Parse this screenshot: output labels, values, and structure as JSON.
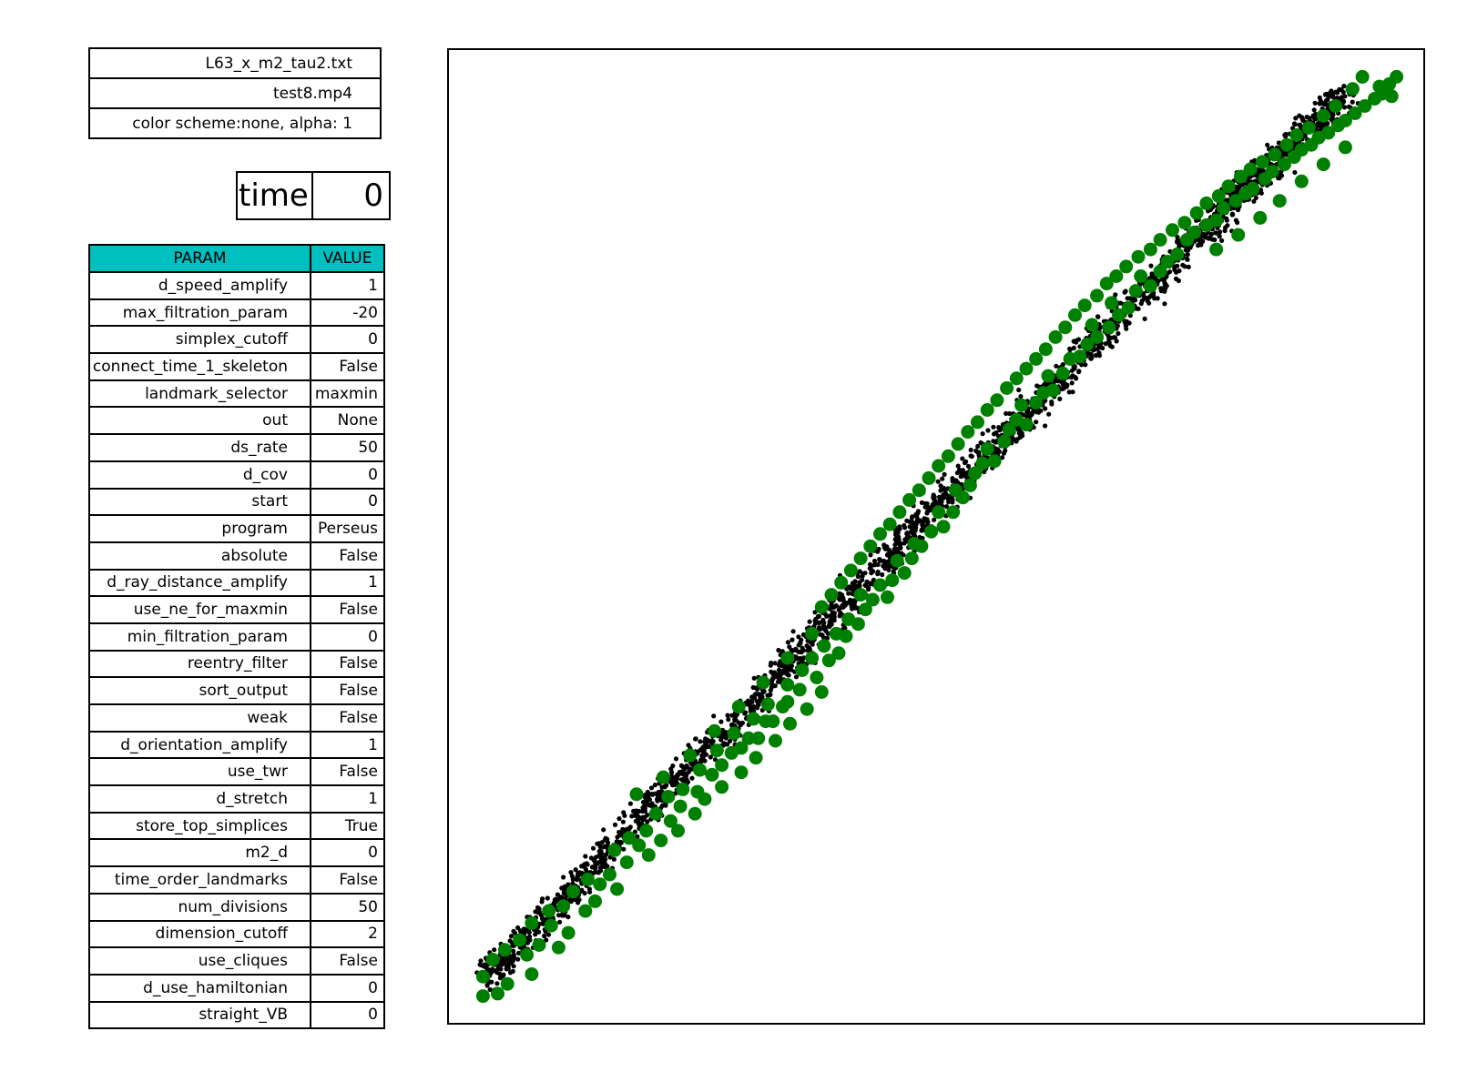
{
  "info": {
    "filename": "L63_x_m2_tau2.txt",
    "movie": "test8.mp4",
    "color_scheme": "color scheme:none, alpha: 1"
  },
  "time": {
    "label": "time",
    "value": "0"
  },
  "params": {
    "header": {
      "param": "PARAM",
      "value": "VALUE"
    },
    "header_color": "#00bfbf",
    "rows": [
      {
        "name": "d_speed_amplify",
        "value": "1"
      },
      {
        "name": "max_filtration_param",
        "value": "-20"
      },
      {
        "name": "simplex_cutoff",
        "value": "0"
      },
      {
        "name": "connect_time_1_skeleton",
        "value": "False"
      },
      {
        "name": "landmark_selector",
        "value": "maxmin"
      },
      {
        "name": "out",
        "value": "None"
      },
      {
        "name": "ds_rate",
        "value": "50"
      },
      {
        "name": "d_cov",
        "value": "0"
      },
      {
        "name": "start",
        "value": "0"
      },
      {
        "name": "program",
        "value": "Perseus"
      },
      {
        "name": "absolute",
        "value": "False"
      },
      {
        "name": "d_ray_distance_amplify",
        "value": "1"
      },
      {
        "name": "use_ne_for_maxmin",
        "value": "False"
      },
      {
        "name": "min_filtration_param",
        "value": "0"
      },
      {
        "name": "reentry_filter",
        "value": "False"
      },
      {
        "name": "sort_output",
        "value": "False"
      },
      {
        "name": "weak",
        "value": "False"
      },
      {
        "name": "d_orientation_amplify",
        "value": "1"
      },
      {
        "name": "use_twr",
        "value": "False"
      },
      {
        "name": "d_stretch",
        "value": "1"
      },
      {
        "name": "store_top_simplices",
        "value": "True"
      },
      {
        "name": "m2_d",
        "value": "0"
      },
      {
        "name": "time_order_landmarks",
        "value": "False"
      },
      {
        "name": "num_divisions",
        "value": "50"
      },
      {
        "name": "dimension_cutoff",
        "value": "2"
      },
      {
        "name": "use_cliques",
        "value": "False"
      },
      {
        "name": "d_use_hamiltonian",
        "value": "0"
      },
      {
        "name": "straight_VB",
        "value": "0"
      }
    ]
  },
  "chart_data": {
    "type": "scatter",
    "title": "",
    "xlabel": "",
    "ylabel": "",
    "xlim": [
      -20,
      20
    ],
    "ylim": [
      -20,
      20
    ],
    "grid": false,
    "axes_visible": false,
    "series": [
      {
        "role": "witness",
        "color": "#000000",
        "marker_size": "small",
        "band_centerline": [
          [
            -18.5,
            -18.3
          ],
          [
            -12,
            -11.4
          ],
          [
            -6,
            -5.2
          ],
          [
            0,
            1.2
          ],
          [
            6,
            7.4
          ],
          [
            12,
            13.6
          ],
          [
            17,
            18.4
          ]
        ],
        "band_halfwidth": 1.0,
        "point_count": 2400
      },
      {
        "role": "landmark",
        "color": "#008000",
        "marker_size": "large",
        "points": [
          [
            -18.6,
            -18.9
          ],
          [
            -18.6,
            -18.1
          ],
          [
            -18.0,
            -18.8
          ],
          [
            -17.6,
            -18.4
          ],
          [
            -18.2,
            -17.4
          ],
          [
            -17.7,
            -17.0
          ],
          [
            -17.1,
            -16.6
          ],
          [
            -16.6,
            -18.0
          ],
          [
            -16.8,
            -17.2
          ],
          [
            -16.3,
            -16.8
          ],
          [
            -16.6,
            -15.9
          ],
          [
            -15.8,
            -16.0
          ],
          [
            -15.5,
            -16.9
          ],
          [
            -15.1,
            -16.3
          ],
          [
            -15.9,
            -15.4
          ],
          [
            -15.3,
            -15.2
          ],
          [
            -14.9,
            -14.6
          ],
          [
            -14.4,
            -15.4
          ],
          [
            -14.0,
            -15.0
          ],
          [
            -14.3,
            -14.1
          ],
          [
            -13.8,
            -14.3
          ],
          [
            -13.4,
            -13.9
          ],
          [
            -13.1,
            -14.5
          ],
          [
            -12.7,
            -13.4
          ],
          [
            -13.2,
            -12.9
          ],
          [
            -12.6,
            -12.4
          ],
          [
            -12.2,
            -12.7
          ],
          [
            -11.8,
            -13.1
          ],
          [
            -11.9,
            -12.1
          ],
          [
            -11.3,
            -12.5
          ],
          [
            -11.5,
            -11.4
          ],
          [
            -10.9,
            -11.7
          ],
          [
            -10.6,
            -12.1
          ],
          [
            -10.5,
            -11.1
          ],
          [
            -11.0,
            -10.7
          ],
          [
            -10.4,
            -10.4
          ],
          [
            -9.9,
            -11.4
          ],
          [
            -9.8,
            -10.5
          ],
          [
            -9.5,
            -10.8
          ],
          [
            -9.7,
            -9.6
          ],
          [
            -9.2,
            -9.8
          ],
          [
            -8.8,
            -10.3
          ],
          [
            -8.8,
            -9.4
          ],
          [
            -9.0,
            -8.8
          ],
          [
            -8.4,
            -8.9
          ],
          [
            -8.0,
            -9.7
          ],
          [
            -8.0,
            -8.7
          ],
          [
            -8.3,
            -8.1
          ],
          [
            -7.7,
            -8.3
          ],
          [
            -7.4,
            -9.1
          ],
          [
            -7.3,
            -8.3
          ],
          [
            -7.5,
            -7.5
          ],
          [
            -7.0,
            -7.6
          ],
          [
            -6.6,
            -8.4
          ],
          [
            -6.7,
            -7.6
          ],
          [
            -6.9,
            -6.9
          ],
          [
            -6.3,
            -7.0
          ],
          [
            -6.0,
            -7.7
          ],
          [
            -6.1,
            -6.8
          ],
          [
            -6.1,
            -6.1
          ],
          [
            -5.6,
            -6.3
          ],
          [
            -5.3,
            -7.1
          ],
          [
            -5.5,
            -5.5
          ],
          [
            -4.9,
            -5.8
          ],
          [
            -5.1,
            -5.0
          ],
          [
            -4.7,
            -6.4
          ],
          [
            -4.4,
            -5.1
          ],
          [
            -4.6,
            -4.5
          ],
          [
            -4.0,
            -4.8
          ],
          [
            -4.1,
            -4.0
          ],
          [
            -3.7,
            -4.1
          ],
          [
            -3.6,
            -3.4
          ],
          [
            -3.2,
            -3.6
          ],
          [
            -2.9,
            -3.0
          ],
          [
            -3.1,
            -2.4
          ],
          [
            -2.6,
            -2.6
          ],
          [
            -2.3,
            -2.0
          ],
          [
            -2.0,
            -2.5
          ],
          [
            -1.8,
            -1.8
          ],
          [
            -1.3,
            -1.5
          ],
          [
            -1.6,
            -1.0
          ],
          [
            -1.0,
            -0.9
          ],
          [
            -0.6,
            -0.4
          ],
          [
            -0.9,
            -0.3
          ],
          [
            -0.2,
            0.2
          ],
          [
            0.3,
            0.4
          ],
          [
            0.1,
            1.0
          ],
          [
            0.7,
            1.0
          ],
          [
            1.1,
            1.6
          ],
          [
            0.8,
            1.9
          ],
          [
            1.4,
            2.1
          ],
          [
            1.6,
            2.6
          ],
          [
            1.9,
            3.0
          ],
          [
            2.4,
            3.1
          ],
          [
            2.1,
            3.6
          ],
          [
            2.8,
            3.9
          ],
          [
            3.0,
            4.4
          ],
          [
            3.3,
            4.8
          ],
          [
            3.7,
            4.6
          ],
          [
            3.5,
            5.4
          ],
          [
            4.1,
            5.5
          ],
          [
            4.4,
            5.9
          ],
          [
            4.8,
            6.0
          ],
          [
            4.6,
            6.6
          ],
          [
            5.2,
            6.7
          ],
          [
            5.5,
            7.3
          ],
          [
            5.9,
            7.4
          ],
          [
            6.2,
            7.9
          ],
          [
            6.6,
            8.2
          ],
          [
            6.4,
            8.7
          ],
          [
            7.1,
            8.6
          ],
          [
            7.5,
            9.1
          ],
          [
            7.2,
            9.6
          ],
          [
            7.9,
            9.4
          ],
          [
            8.2,
            10.1
          ],
          [
            8.4,
            10.7
          ],
          [
            8.8,
            10.3
          ],
          [
            9.2,
            10.9
          ],
          [
            9.5,
            11.3
          ],
          [
            9.9,
            11.6
          ],
          [
            10.3,
            12.2
          ],
          [
            10.6,
            12.5
          ],
          [
            11.1,
            12.8
          ],
          [
            11.5,
            13.0
          ],
          [
            11.8,
            13.5
          ],
          [
            12.3,
            13.8
          ],
          [
            12.7,
            14.1
          ],
          [
            13.0,
            14.3
          ],
          [
            13.5,
            14.7
          ],
          [
            13.8,
            15.0
          ],
          [
            14.3,
            15.3
          ],
          [
            14.7,
            15.6
          ],
          [
            15.0,
            15.9
          ],
          [
            15.4,
            16.1
          ],
          [
            15.7,
            16.4
          ],
          [
            16.1,
            16.6
          ],
          [
            16.5,
            16.9
          ],
          [
            16.8,
            17.1
          ],
          [
            17.2,
            17.4
          ],
          [
            17.6,
            17.7
          ],
          [
            18.0,
            18.0
          ],
          [
            18.3,
            18.2
          ],
          [
            18.6,
            18.6
          ],
          [
            18.9,
            18.9
          ],
          [
            18.7,
            18.1
          ],
          [
            18.2,
            18.5
          ],
          [
            17.5,
            18.9
          ],
          [
            17.1,
            18.4
          ],
          [
            16.4,
            17.7
          ],
          [
            15.9,
            17.3
          ],
          [
            15.3,
            16.8
          ],
          [
            14.8,
            16.5
          ],
          [
            14.4,
            16.1
          ],
          [
            13.9,
            15.7
          ],
          [
            13.4,
            15.4
          ],
          [
            12.9,
            15.1
          ],
          [
            12.5,
            14.8
          ],
          [
            12.0,
            14.4
          ],
          [
            11.6,
            14.0
          ],
          [
            11.1,
            13.7
          ],
          [
            10.7,
            13.3
          ],
          [
            10.2,
            12.9
          ],
          [
            9.7,
            12.6
          ],
          [
            9.2,
            12.2
          ],
          [
            8.8,
            11.8
          ],
          [
            8.3,
            11.5
          ],
          [
            7.8,
            11.1
          ],
          [
            7.4,
            10.7
          ],
          [
            7.0,
            10.4
          ],
          [
            6.6,
            9.9
          ],
          [
            6.1,
            9.5
          ],
          [
            5.7,
            9.1
          ],
          [
            5.3,
            8.6
          ],
          [
            4.9,
            8.2
          ],
          [
            4.5,
            7.7
          ],
          [
            4.1,
            7.3
          ],
          [
            3.7,
            6.9
          ],
          [
            3.3,
            6.5
          ],
          [
            2.9,
            6.1
          ],
          [
            2.5,
            5.6
          ],
          [
            2.1,
            5.2
          ],
          [
            1.7,
            4.7
          ],
          [
            1.3,
            4.3
          ],
          [
            0.9,
            3.8
          ],
          [
            0.5,
            3.3
          ],
          [
            0.1,
            2.9
          ],
          [
            -0.3,
            2.4
          ],
          [
            -0.7,
            1.9
          ],
          [
            -1.1,
            1.5
          ],
          [
            -1.5,
            1.0
          ],
          [
            -1.9,
            0.5
          ],
          [
            -2.3,
            0.1
          ],
          [
            -2.7,
            -0.4
          ],
          [
            -3.1,
            -0.9
          ],
          [
            -3.5,
            -1.4
          ],
          [
            -3.9,
            -1.9
          ],
          [
            -4.3,
            -2.4
          ],
          [
            -4.7,
            -2.9
          ],
          [
            -12.3,
            -10.6
          ],
          [
            -11.2,
            -9.9
          ],
          [
            -10.1,
            -9.0
          ],
          [
            -9.1,
            -8.0
          ],
          [
            -8.1,
            -7.0
          ],
          [
            -7.1,
            -6.0
          ],
          [
            -6.1,
            -5.0
          ],
          [
            -5.1,
            -4.0
          ],
          [
            13.3,
            13.1
          ],
          [
            14.1,
            13.8
          ],
          [
            15.0,
            14.6
          ],
          [
            15.9,
            15.3
          ],
          [
            16.8,
            16.0
          ],
          [
            12.4,
            12.4
          ],
          [
            11.5,
            11.8
          ]
        ]
      }
    ]
  }
}
